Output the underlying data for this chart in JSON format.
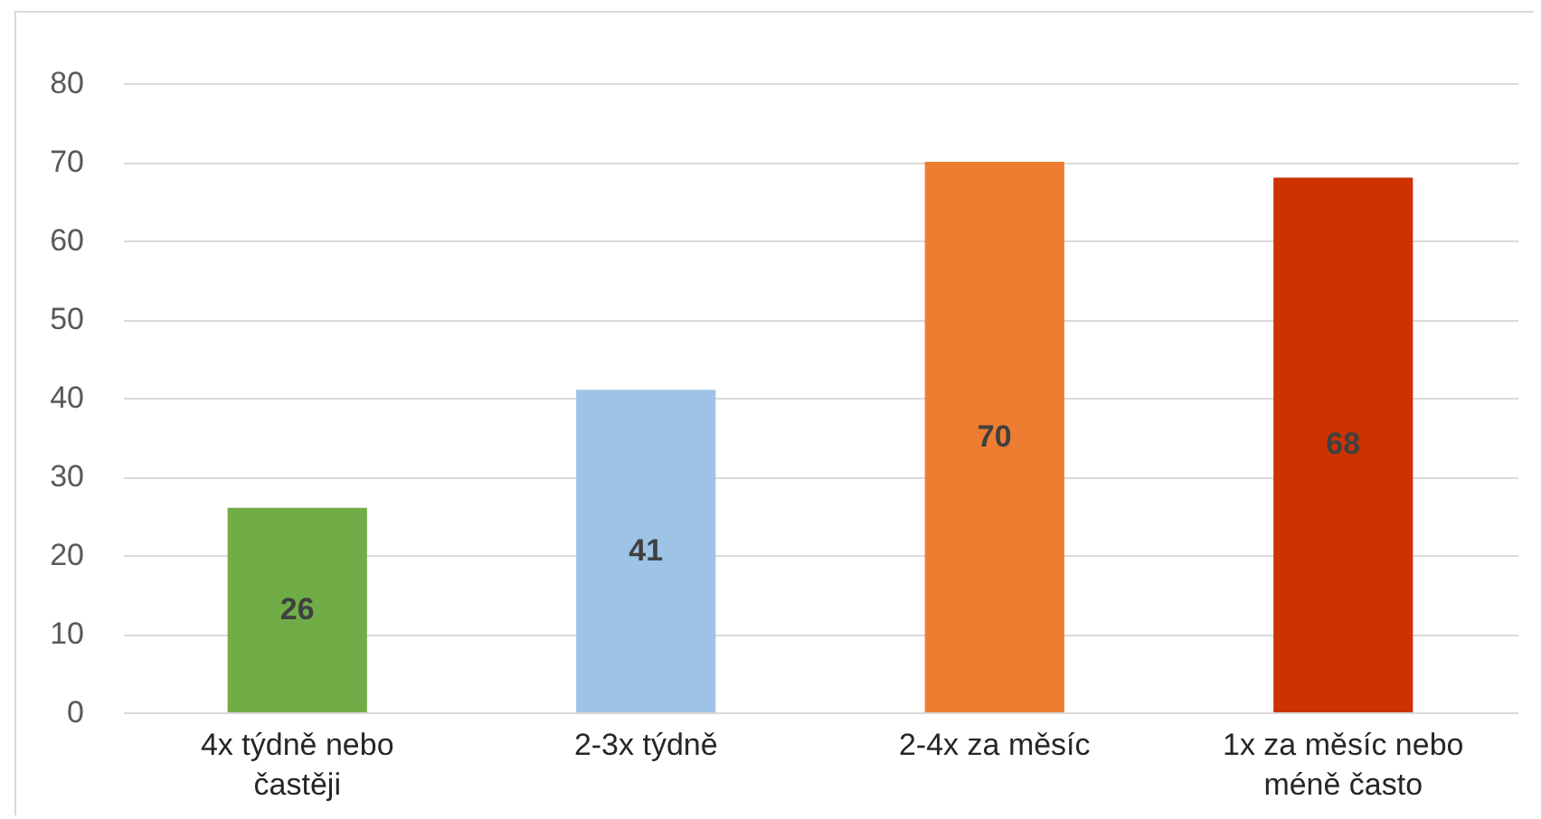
{
  "chart_data": {
    "type": "bar",
    "categories": [
      "4x týdně nebo častěji",
      "2-3x týdně",
      "2-4x za měsíc",
      "1x za měsíc nebo méně často"
    ],
    "values": [
      26,
      41,
      70,
      68
    ],
    "colors": [
      "#70ad47",
      "#9dc3e6",
      "#ed7d31",
      "#cc3300"
    ],
    "ylim": [
      0,
      80
    ],
    "yticks": [
      0,
      10,
      20,
      30,
      40,
      50,
      60,
      70,
      80
    ],
    "grid": "y",
    "data_labels": true
  }
}
